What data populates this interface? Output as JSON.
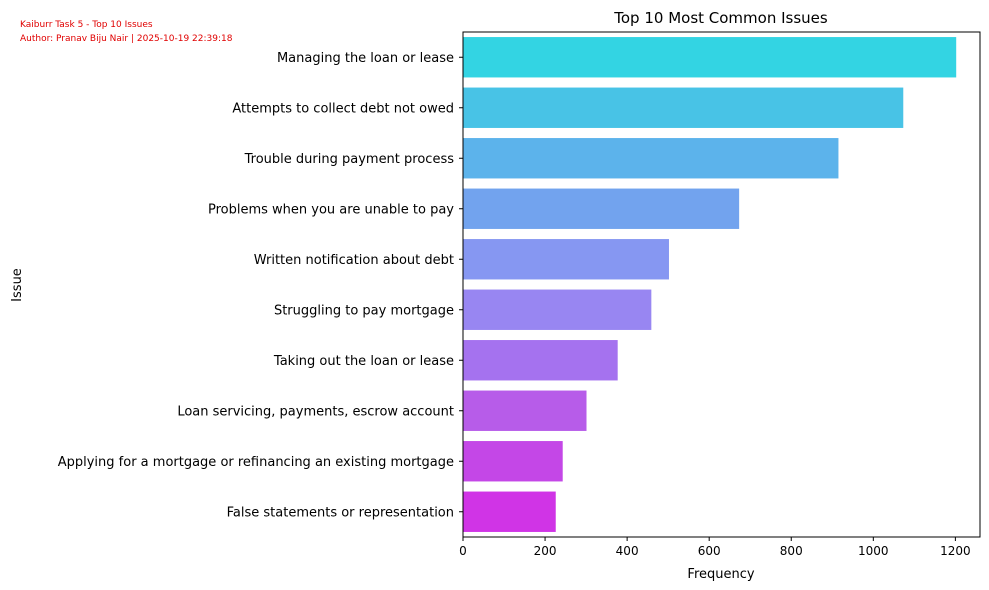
{
  "watermark": {
    "line1": "Kaiburr Task 5 - Top 10 Issues",
    "line2": "Author: Pranav Biju Nair | 2025-10-19 22:39:18"
  },
  "chart_data": {
    "type": "bar",
    "orientation": "horizontal",
    "title": "Top 10 Most Common Issues",
    "xlabel": "Frequency",
    "ylabel": "Issue",
    "xlim": [
      0,
      1260
    ],
    "xticks": [
      0,
      200,
      400,
      600,
      800,
      1000,
      1200
    ],
    "grid": false,
    "categories": [
      "Managing the loan or lease",
      "Attempts to collect debt not owed",
      "Trouble during payment process",
      "Problems when you are unable to pay",
      "Written notification about debt",
      "Struggling to pay mortgage",
      "Taking out the loan or lease",
      "Loan servicing, payments, escrow account",
      "Applying for a mortgage or refinancing an existing mortgage",
      "False statements or representation"
    ],
    "values": [
      1202,
      1073,
      915,
      673,
      502,
      459,
      377,
      301,
      243,
      226
    ],
    "colors": [
      "#33d4e3",
      "#48c3e6",
      "#5cb3eb",
      "#72a3ee",
      "#8697f2",
      "#9886f2",
      "#a572ef",
      "#b75ce9",
      "#c447e7",
      "#d034e6"
    ]
  }
}
